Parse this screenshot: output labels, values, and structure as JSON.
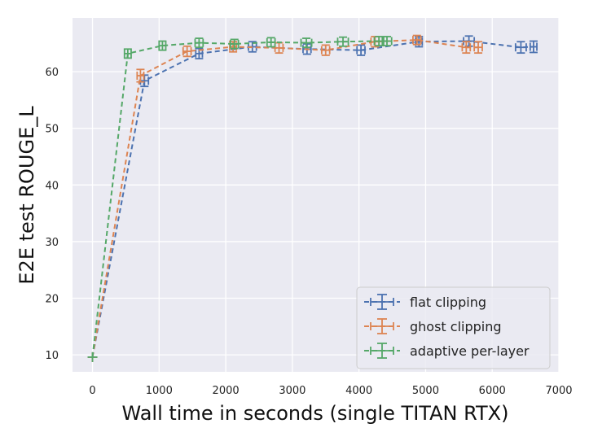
{
  "chart_data": {
    "type": "line",
    "xlabel": "Wall time in seconds (single TITAN RTX)",
    "ylabel": "E2E test ROUGE_L",
    "xlim": [
      -300,
      7000
    ],
    "ylim": [
      7,
      69.5
    ],
    "xticks": [
      0,
      1000,
      2000,
      3000,
      4000,
      5000,
      6000,
      7000
    ],
    "yticks": [
      10,
      20,
      30,
      40,
      50,
      60
    ],
    "grid": true,
    "legend_position": "lower-right",
    "series": [
      {
        "name": "flat clipping",
        "color": "#4C72B0",
        "x": [
          0,
          780,
          1600,
          2400,
          3220,
          4030,
          4900,
          5650,
          6430,
          6620
        ],
        "y": [
          9.6,
          58.4,
          63.2,
          64.4,
          64.0,
          63.8,
          65.3,
          65.4,
          64.3,
          64.4
        ],
        "xerr": [
          0,
          60,
          50,
          60,
          60,
          60,
          50,
          80,
          80,
          50
        ],
        "yerr": [
          0,
          1.0,
          0.9,
          0.9,
          0.9,
          0.9,
          0.9,
          0.9,
          1.0,
          1.0
        ]
      },
      {
        "name": "ghost clipping",
        "color": "#DD8452",
        "x": [
          0,
          720,
          1420,
          2110,
          2800,
          3500,
          4240,
          4870,
          5610,
          5790
        ],
        "y": [
          9.6,
          59.3,
          63.6,
          64.4,
          64.2,
          63.8,
          65.3,
          65.6,
          64.3,
          64.3
        ],
        "xerr": [
          0,
          50,
          60,
          50,
          60,
          60,
          60,
          60,
          60,
          60
        ],
        "yerr": [
          0,
          1.1,
          0.9,
          0.9,
          0.9,
          0.9,
          0.9,
          0.8,
          1.0,
          1.0
        ]
      },
      {
        "name": "adaptive per-layer",
        "color": "#55A868",
        "x": [
          0,
          530,
          1050,
          1600,
          2130,
          2680,
          3210,
          3760,
          4300,
          4420
        ],
        "y": [
          9.6,
          63.2,
          64.6,
          65.1,
          64.9,
          65.2,
          65.1,
          65.3,
          65.4,
          65.4
        ],
        "xerr": [
          0,
          50,
          50,
          60,
          60,
          60,
          80,
          80,
          70,
          70
        ],
        "yerr": [
          0,
          0.8,
          0.8,
          0.8,
          0.8,
          0.8,
          0.8,
          0.8,
          0.8,
          0.8
        ]
      }
    ]
  }
}
